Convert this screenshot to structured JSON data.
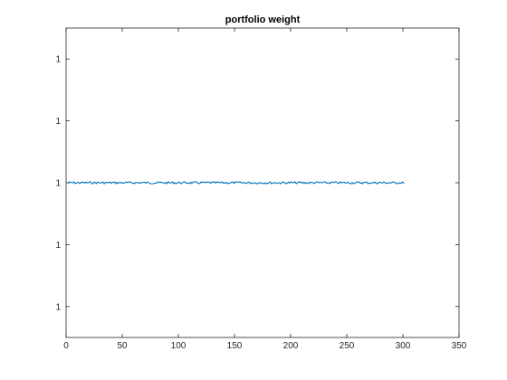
{
  "chart_data": {
    "type": "line",
    "title": "portfolio weight",
    "xlabel": "",
    "ylabel": "",
    "xlim": [
      0,
      350
    ],
    "ylim": [
      0.9999999999,
      1.0000000001
    ],
    "x_ticks": [
      0,
      50,
      100,
      150,
      200,
      250,
      300,
      350
    ],
    "x_tick_labels": [
      "0",
      "50",
      "100",
      "150",
      "200",
      "250",
      "300",
      "350"
    ],
    "y_ticks": [
      0.99999999992,
      0.99999999996,
      1.0,
      1.00000000004,
      1.00000000008
    ],
    "y_tick_labels": [
      "1",
      "1",
      "1",
      "1",
      "1"
    ],
    "grid": false,
    "line_color": "#0072bd",
    "series": [
      {
        "x": [
          1,
          301
        ],
        "y_start": 1.0,
        "y_end": 1.0,
        "note_level": 1.0
      }
    ]
  }
}
